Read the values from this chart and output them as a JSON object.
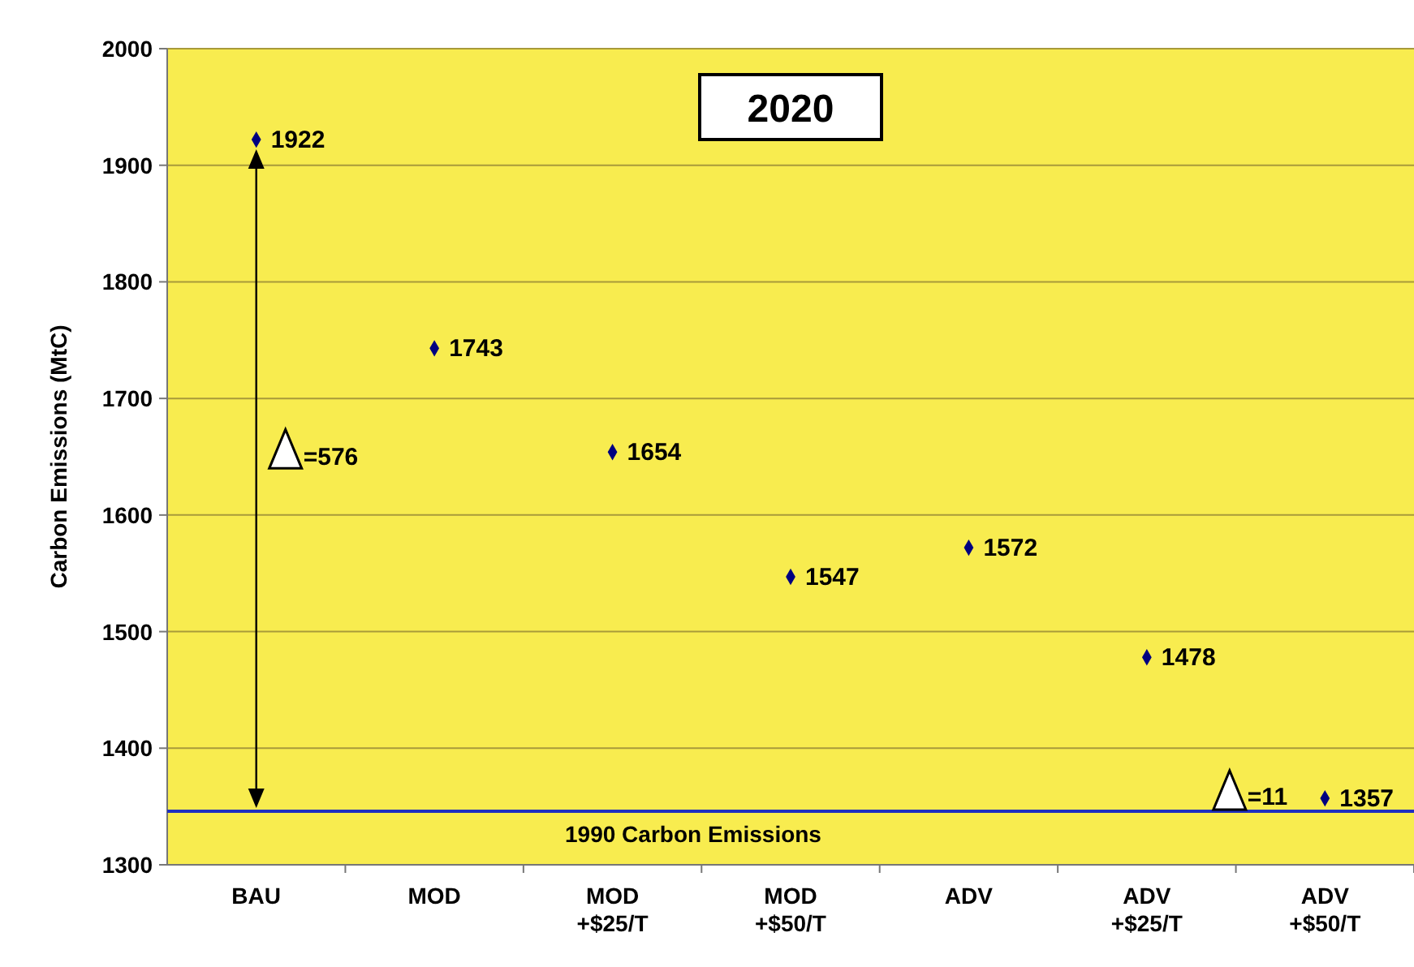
{
  "chart_data": {
    "type": "scatter",
    "title": "2020",
    "ylabel": "Carbon Emissions (MtC)",
    "categories": [
      "BAU",
      "MOD",
      "MOD\n+$25/T",
      "MOD\n+$50/T",
      "ADV",
      "ADV\n+$25/T",
      "ADV\n+$50/T"
    ],
    "series": [
      {
        "color": "#000080",
        "values": [
          1922,
          1743,
          1654,
          1547,
          1572,
          1478,
          1357
        ]
      }
    ],
    "data_labels": true,
    "marker": "diamond",
    "ylim": [
      1300,
      2000
    ],
    "yticks": [
      1300,
      1400,
      1500,
      1600,
      1700,
      1800,
      1900,
      2000
    ],
    "grid": "y",
    "ref_lines": [
      {
        "axis": "y",
        "value": 1346,
        "label": "1990 Carbon Emissions",
        "color": "#1f2fbf"
      }
    ],
    "annotations": [
      "=576",
      "=11"
    ]
  }
}
